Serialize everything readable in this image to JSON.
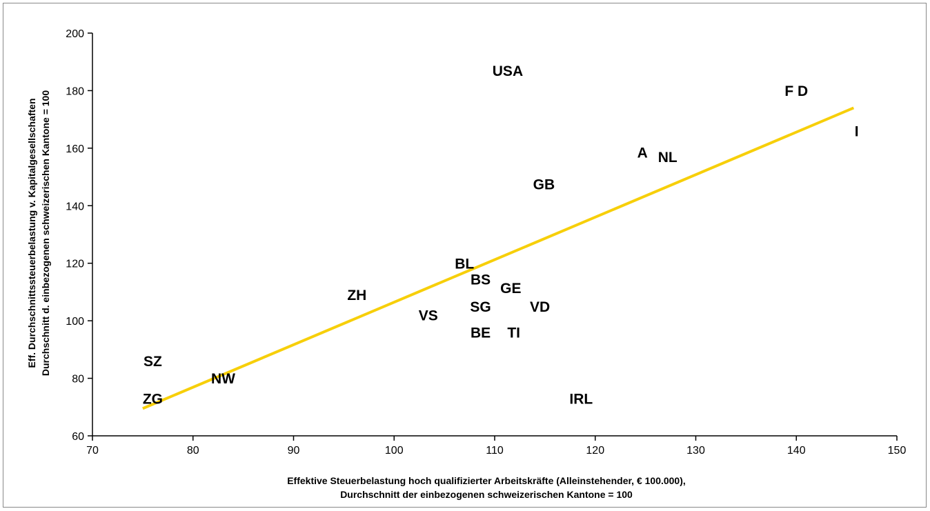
{
  "chart_data": {
    "type": "scatter",
    "xlabel": [
      "Effektive Steuerbelastung hoch qualifizierter Arbeitskräfte (Alleinstehender, € 100.000),",
      "Durchschnitt der einbezogenen schweizerischen Kantone = 100"
    ],
    "ylabel": [
      "Eff. Durchschnittssteuerbelastung v. Kapitalgesellschaften",
      "Durchschnitt d. einbezogenen schweizerischen Kantone = 100"
    ],
    "xlim": [
      70,
      150
    ],
    "ylim": [
      60,
      200
    ],
    "xticks": [
      70,
      80,
      90,
      100,
      110,
      120,
      130,
      140,
      150
    ],
    "yticks": [
      60,
      80,
      100,
      120,
      140,
      160,
      180,
      200
    ],
    "grid": false,
    "legend": "none",
    "points": [
      {
        "label": "USA",
        "x": 111.3,
        "y": 186.5
      },
      {
        "label": "F D",
        "x": 140.0,
        "y": 179.5
      },
      {
        "label": "I",
        "x": 146.0,
        "y": 165.5
      },
      {
        "label": "A",
        "x": 124.7,
        "y": 158.0
      },
      {
        "label": "NL",
        "x": 127.2,
        "y": 156.5
      },
      {
        "label": "GB",
        "x": 114.9,
        "y": 147.0
      },
      {
        "label": "BL",
        "x": 107.0,
        "y": 119.5
      },
      {
        "label": "BS",
        "x": 108.6,
        "y": 114.0
      },
      {
        "label": "GE",
        "x": 111.6,
        "y": 111.0
      },
      {
        "label": "ZH",
        "x": 96.3,
        "y": 108.5
      },
      {
        "label": "SG",
        "x": 108.6,
        "y": 104.5
      },
      {
        "label": "VD",
        "x": 114.5,
        "y": 104.5
      },
      {
        "label": "VS",
        "x": 103.4,
        "y": 101.5
      },
      {
        "label": "BE",
        "x": 108.6,
        "y": 95.5
      },
      {
        "label": "TI",
        "x": 111.9,
        "y": 95.5
      },
      {
        "label": "SZ",
        "x": 76.0,
        "y": 85.5
      },
      {
        "label": "NW",
        "x": 83.0,
        "y": 79.5
      },
      {
        "label": "ZG",
        "x": 76.0,
        "y": 72.5
      },
      {
        "label": "IRL",
        "x": 118.6,
        "y": 72.5
      }
    ],
    "trendline": {
      "x": [
        75,
        145.7
      ],
      "y": [
        69.5,
        174.0
      ],
      "color": "#f7cf0a"
    },
    "colors": {
      "axis": "#000000",
      "frame": "#888888",
      "trend": "#f7cf0a"
    }
  }
}
